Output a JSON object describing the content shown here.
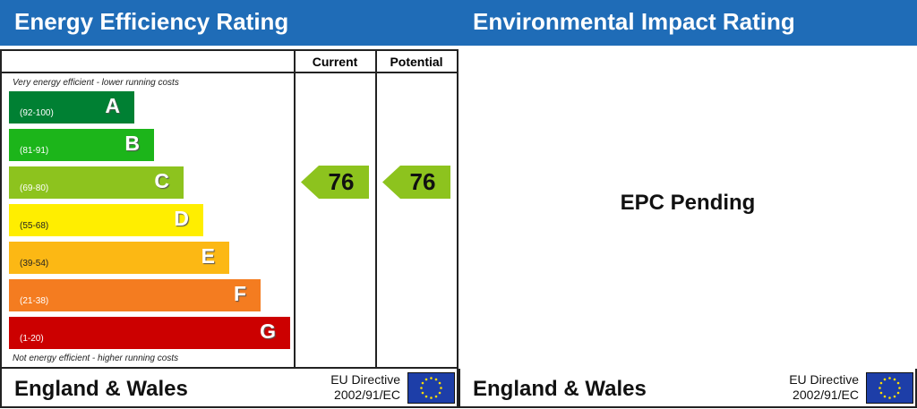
{
  "energy": {
    "title": "Energy Efficiency Rating",
    "col_current": "Current",
    "col_potential": "Potential",
    "top_note": "Very energy efficient - lower running costs",
    "bottom_note": "Not energy efficient - higher running costs",
    "bands": [
      {
        "letter": "A",
        "range": "(92-100)",
        "color": "#008033"
      },
      {
        "letter": "B",
        "range": "(81-91)",
        "color": "#1cb51a"
      },
      {
        "letter": "C",
        "range": "(69-80)",
        "color": "#8dc31e"
      },
      {
        "letter": "D",
        "range": "(55-68)",
        "color": "#ffee00"
      },
      {
        "letter": "E",
        "range": "(39-54)",
        "color": "#fcb814"
      },
      {
        "letter": "F",
        "range": "(21-38)",
        "color": "#f47c20"
      },
      {
        "letter": "G",
        "range": "(1-20)",
        "color": "#cc0000"
      }
    ],
    "current": "76",
    "potential": "76",
    "current_band": "C",
    "potential_band": "C",
    "footer": {
      "region": "England & Wales",
      "directive_line1": "EU Directive",
      "directive_line2": "2002/91/EC"
    }
  },
  "environmental": {
    "title": "Environmental Impact Rating",
    "status": "EPC Pending",
    "footer": {
      "region": "England & Wales",
      "directive_line1": "EU Directive",
      "directive_line2": "2002/91/EC"
    }
  }
}
